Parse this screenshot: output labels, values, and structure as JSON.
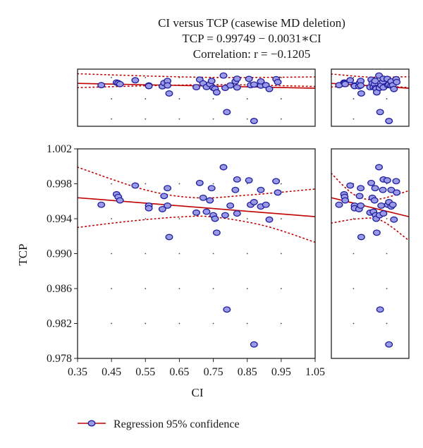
{
  "chart_data": {
    "type": "scatter",
    "title_lines": [
      "CI versus TCP (casewise MD deletion)",
      "TCP = 0.99749 − 0.0031∗CI",
      "Correlation: r = −0.1205"
    ],
    "xlabel": "CI",
    "ylabel": "TCP",
    "xlim": [
      0.35,
      1.05
    ],
    "ylim": [
      0.978,
      1.002
    ],
    "x_ticks": [
      "0.35",
      "0.45",
      "0.55",
      "0.65",
      "0.75",
      "0.85",
      "0.95",
      "1.05"
    ],
    "y_ticks": [
      "0.978",
      "0.982",
      "0.986",
      "0.990",
      "0.994",
      "0.998",
      "1.002"
    ],
    "regression": {
      "intercept": 0.99749,
      "slope": -0.0031
    },
    "confidence_band": {
      "upper": [
        [
          0.35,
          0.9999
        ],
        [
          0.55,
          0.9973
        ],
        [
          0.7,
          0.9964
        ],
        [
          0.85,
          0.9967
        ],
        [
          1.05,
          0.9974
        ]
      ],
      "lower": [
        [
          0.35,
          0.993
        ],
        [
          0.5,
          0.9937
        ],
        [
          0.65,
          0.9942
        ],
        [
          0.75,
          0.9942
        ],
        [
          0.9,
          0.9932
        ],
        [
          1.05,
          0.9913
        ]
      ]
    },
    "points": [
      {
        "x": 0.42,
        "y": 0.9956
      },
      {
        "x": 0.465,
        "y": 0.9968
      },
      {
        "x": 0.47,
        "y": 0.9965
      },
      {
        "x": 0.475,
        "y": 0.9961
      },
      {
        "x": 0.52,
        "y": 0.9978
      },
      {
        "x": 0.56,
        "y": 0.9955
      },
      {
        "x": 0.56,
        "y": 0.9952
      },
      {
        "x": 0.6,
        "y": 0.9951
      },
      {
        "x": 0.605,
        "y": 0.9966
      },
      {
        "x": 0.615,
        "y": 0.9975
      },
      {
        "x": 0.615,
        "y": 0.9955
      },
      {
        "x": 0.62,
        "y": 0.9919
      },
      {
        "x": 0.7,
        "y": 0.9947
      },
      {
        "x": 0.71,
        "y": 0.9981
      },
      {
        "x": 0.72,
        "y": 0.9964
      },
      {
        "x": 0.73,
        "y": 0.9948
      },
      {
        "x": 0.74,
        "y": 0.9961
      },
      {
        "x": 0.745,
        "y": 0.9975
      },
      {
        "x": 0.75,
        "y": 0.9944
      },
      {
        "x": 0.755,
        "y": 0.994
      },
      {
        "x": 0.76,
        "y": 0.9924
      },
      {
        "x": 0.78,
        "y": 0.9999
      },
      {
        "x": 0.785,
        "y": 0.9944
      },
      {
        "x": 0.79,
        "y": 0.9836
      },
      {
        "x": 0.8,
        "y": 0.9955
      },
      {
        "x": 0.815,
        "y": 0.9973
      },
      {
        "x": 0.82,
        "y": 0.9985
      },
      {
        "x": 0.82,
        "y": 0.9946
      },
      {
        "x": 0.855,
        "y": 0.9984
      },
      {
        "x": 0.86,
        "y": 0.9956
      },
      {
        "x": 0.87,
        "y": 0.9959
      },
      {
        "x": 0.87,
        "y": 0.9796
      },
      {
        "x": 0.89,
        "y": 0.9954
      },
      {
        "x": 0.89,
        "y": 0.9973
      },
      {
        "x": 0.905,
        "y": 0.9956
      },
      {
        "x": 0.915,
        "y": 0.9939
      },
      {
        "x": 0.935,
        "y": 0.9983
      },
      {
        "x": 0.94,
        "y": 0.997
      }
    ],
    "legend": "Regression 95% confidence",
    "legend_position": "bottom-left",
    "grid": "dotted",
    "colors": {
      "marker_fill": "#9a9ae6",
      "marker_stroke": "#1e1e9e",
      "regression": "#c00000",
      "confidence": "#c00000"
    }
  }
}
